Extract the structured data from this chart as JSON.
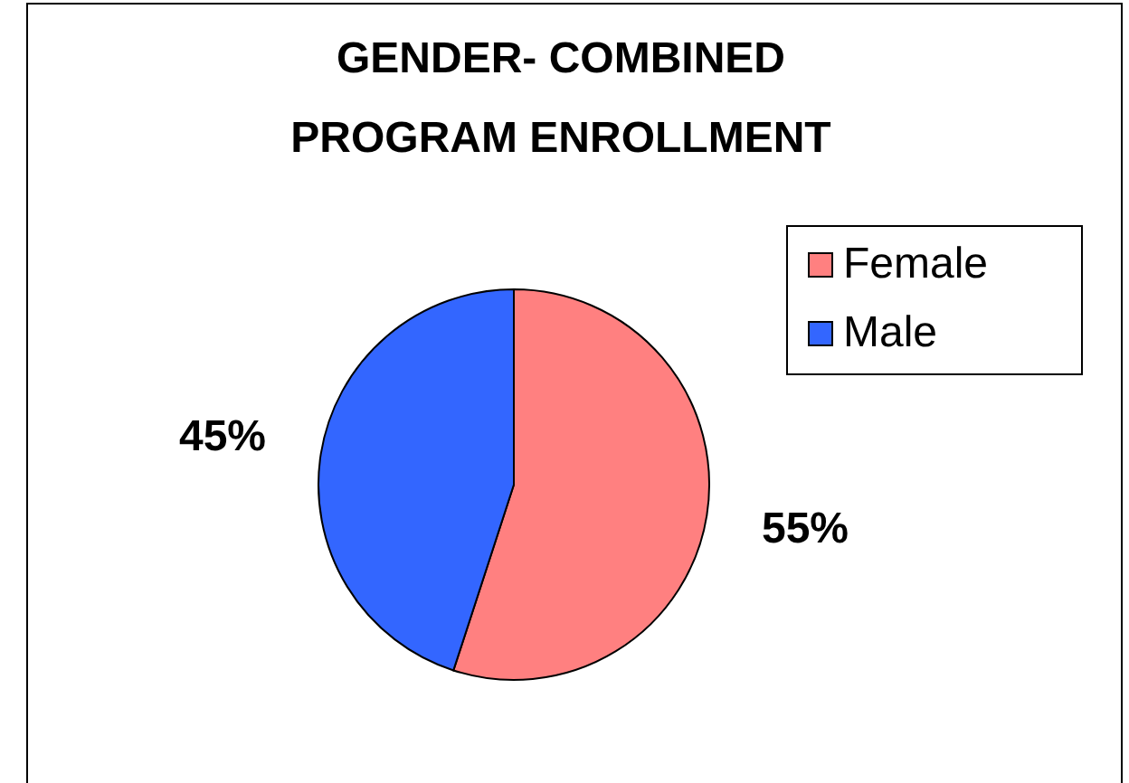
{
  "chart_data": {
    "type": "pie",
    "title": "GENDER- COMBINED\nPROGRAM ENROLLMENT",
    "categories": [
      "Female",
      "Male"
    ],
    "values": [
      55,
      45
    ],
    "colors": [
      "#ff8080",
      "#3366ff"
    ],
    "value_labels": [
      "55%",
      "45%"
    ],
    "legend": "right"
  }
}
